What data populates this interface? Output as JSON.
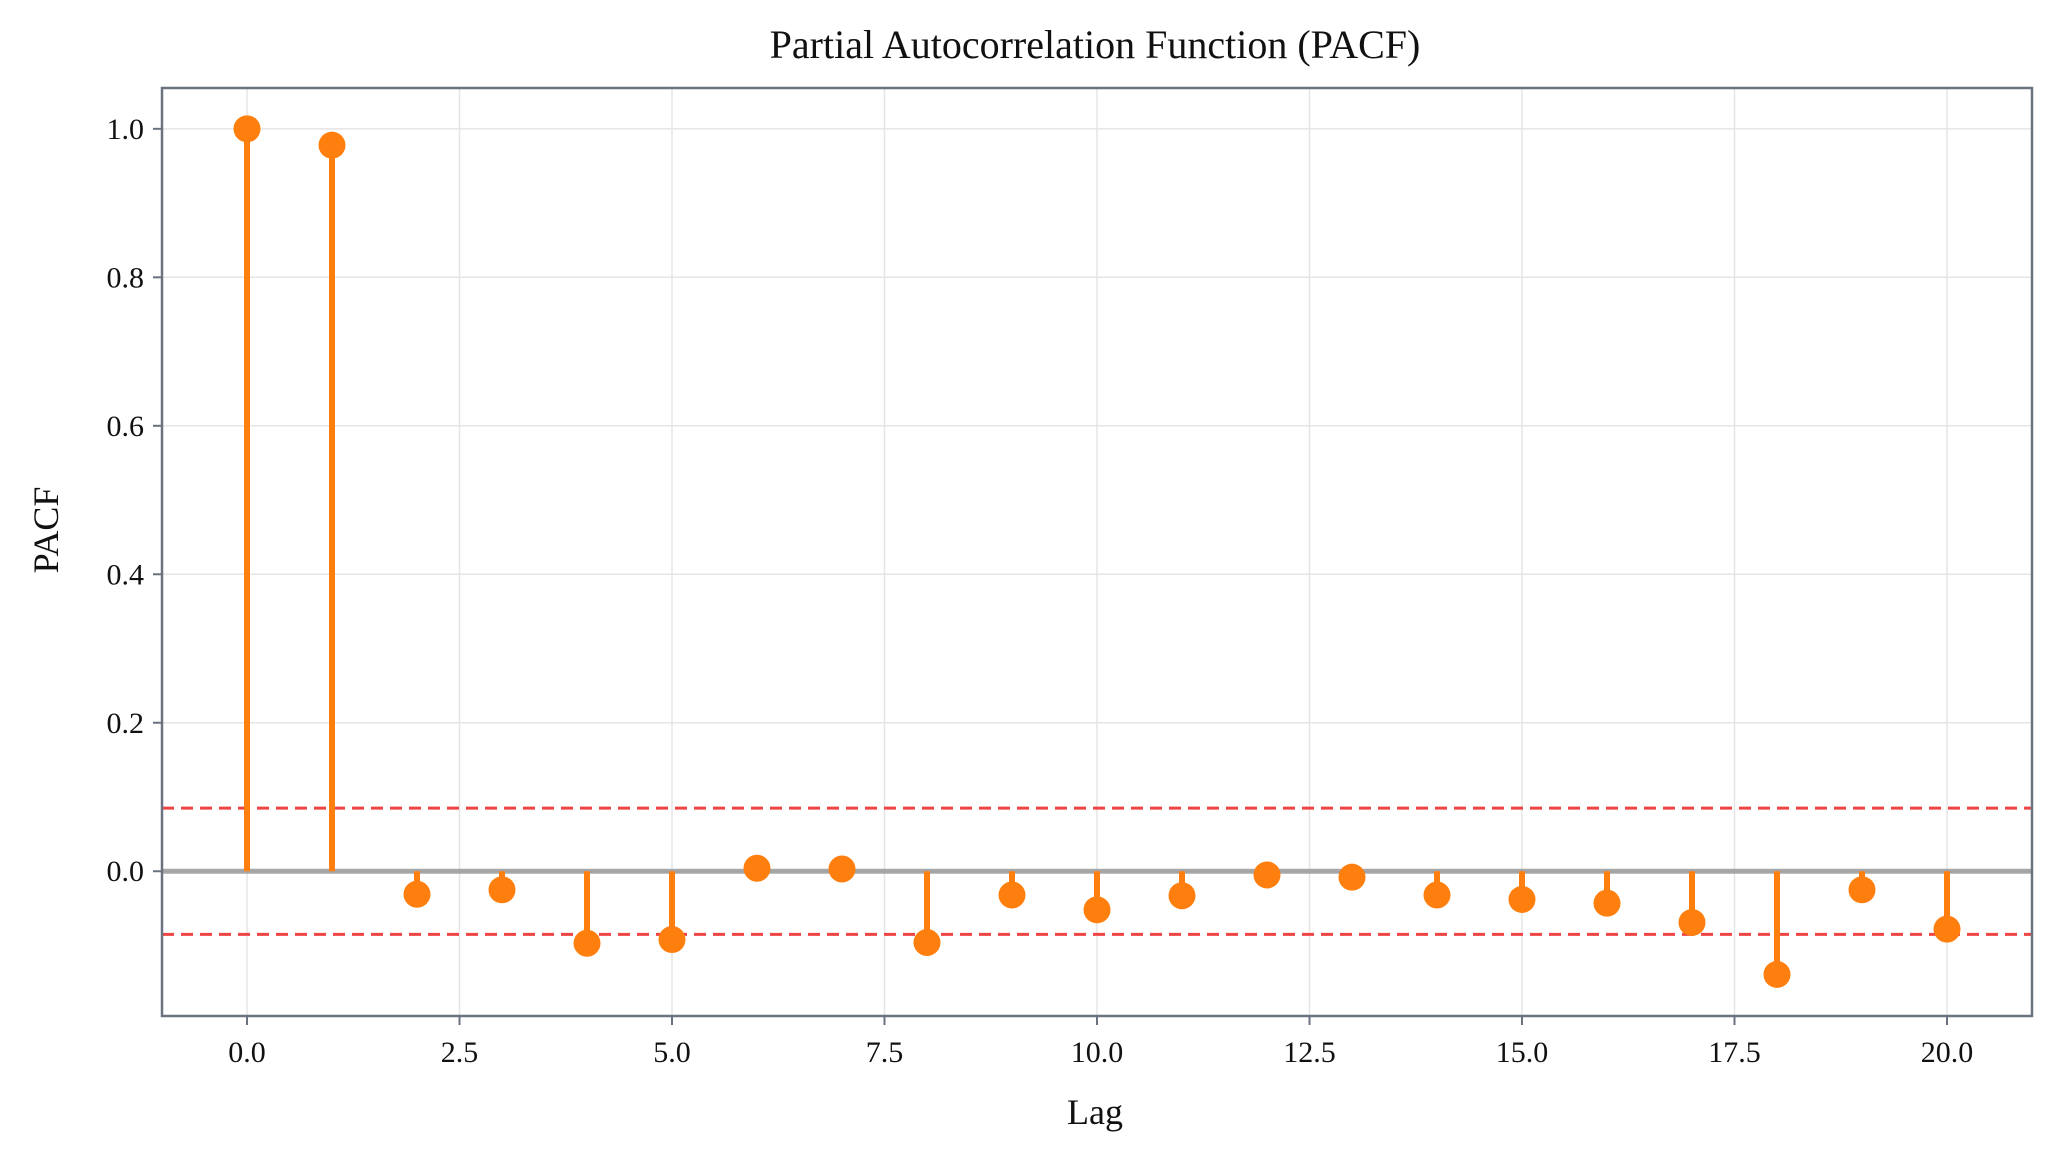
{
  "chart_data": {
    "type": "stem",
    "title": "Partial Autocorrelation Function (PACF)",
    "xlabel": "Lag",
    "ylabel": "PACF",
    "xlim": [
      -1,
      21
    ],
    "ylim": [
      -0.195,
      1.055
    ],
    "x": [
      0,
      1,
      2,
      3,
      4,
      5,
      6,
      7,
      8,
      9,
      10,
      11,
      12,
      13,
      14,
      15,
      16,
      17,
      18,
      19,
      20
    ],
    "values": [
      1.0,
      0.978,
      -0.031,
      -0.025,
      -0.097,
      -0.092,
      0.004,
      0.003,
      -0.096,
      -0.032,
      -0.052,
      -0.033,
      -0.005,
      -0.008,
      -0.032,
      -0.038,
      -0.043,
      -0.069,
      -0.139,
      -0.025,
      -0.078
    ],
    "confidence_upper": 0.085,
    "confidence_lower": -0.085,
    "xticks": [
      0.0,
      2.5,
      5.0,
      7.5,
      10.0,
      12.5,
      15.0,
      17.5,
      20.0
    ],
    "xtick_labels": [
      "0.0",
      "2.5",
      "5.0",
      "7.5",
      "10.0",
      "12.5",
      "15.0",
      "17.5",
      "20.0"
    ],
    "yticks": [
      0.0,
      0.2,
      0.4,
      0.6,
      0.8,
      1.0
    ],
    "ytick_labels": [
      "0.0",
      "0.2",
      "0.4",
      "0.6",
      "0.8",
      "1.0"
    ],
    "grid": true,
    "colors": {
      "stem": "#ff7f0e",
      "confidence": "#ef4444",
      "zero_line": "#999999"
    }
  }
}
